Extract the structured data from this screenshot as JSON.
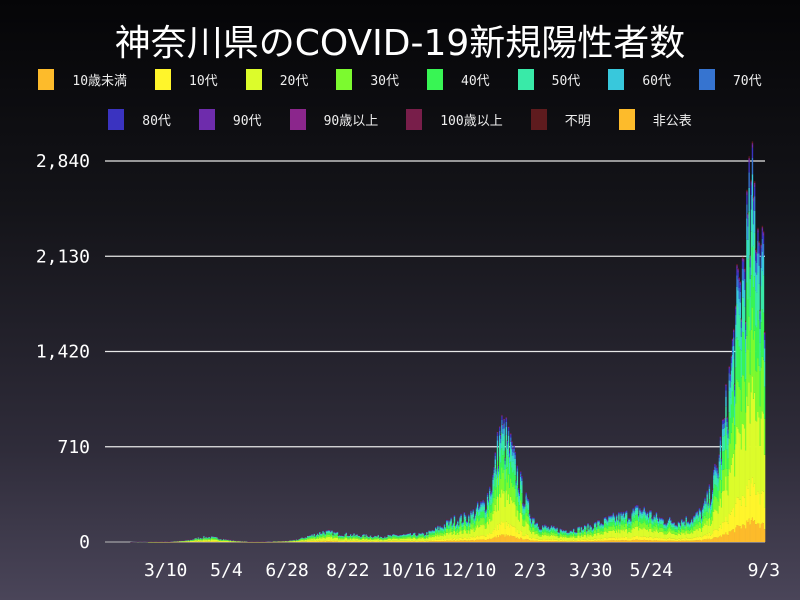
{
  "chart_data": {
    "type": "bar",
    "stacked": true,
    "title": "神奈川県のCOVID-19新規陽性者数",
    "xlabel": "",
    "ylabel": "",
    "ylim": [
      0,
      2840
    ],
    "yticks": [
      "0",
      "710",
      "1,420",
      "2,130",
      "2,840"
    ],
    "ytick_values": [
      0,
      710,
      1420,
      2130,
      2840
    ],
    "xticks": [
      "3/10",
      "5/4",
      "6/28",
      "8/22",
      "10/16",
      "12/10",
      "2/3",
      "3/30",
      "5/24",
      "9/3"
    ],
    "xtick_dates": [
      "2020-03-10",
      "2020-05-04",
      "2020-06-28",
      "2020-08-22",
      "2020-10-16",
      "2020-12-10",
      "2021-02-03",
      "2021-03-30",
      "2021-05-24",
      "2021-09-03"
    ],
    "x_range": [
      "2020-01-15",
      "2021-09-04"
    ],
    "grid": "horizontal",
    "legend_placement": "top",
    "series": [
      {
        "name": "10歳未満",
        "color": "#fdbb2b",
        "share": 0.06
      },
      {
        "name": "10代",
        "color": "#fff52b",
        "share": 0.1
      },
      {
        "name": "20代",
        "color": "#dcfc2b",
        "share": 0.25
      },
      {
        "name": "30代",
        "color": "#7cfa2f",
        "share": 0.17
      },
      {
        "name": "40代",
        "color": "#38f554",
        "share": 0.15
      },
      {
        "name": "50代",
        "color": "#39eaa8",
        "share": 0.12
      },
      {
        "name": "60代",
        "color": "#38c8dc",
        "share": 0.06
      },
      {
        "name": "70代",
        "color": "#3674d0",
        "share": 0.04
      },
      {
        "name": "80代",
        "color": "#3a33c0",
        "share": 0.025
      },
      {
        "name": "90代",
        "color": "#6e2cac",
        "share": 0.008
      },
      {
        "name": "90歳以上",
        "color": "#8b268c",
        "share": 0.003
      },
      {
        "name": "100歳以上",
        "color": "#781e4a",
        "share": 0.001
      },
      {
        "name": "不明",
        "color": "#5e1b1e",
        "share": 0.004
      },
      {
        "name": "非公表",
        "color": "#fdbb2b",
        "share": 0.0
      }
    ],
    "weekly_totals": {
      "dates": [
        "2020-01-16",
        "2020-01-23",
        "2020-01-30",
        "2020-02-06",
        "2020-02-13",
        "2020-02-20",
        "2020-02-27",
        "2020-03-05",
        "2020-03-12",
        "2020-03-19",
        "2020-03-26",
        "2020-04-02",
        "2020-04-09",
        "2020-04-16",
        "2020-04-23",
        "2020-04-30",
        "2020-05-07",
        "2020-05-14",
        "2020-05-21",
        "2020-05-28",
        "2020-06-04",
        "2020-06-11",
        "2020-06-18",
        "2020-06-25",
        "2020-07-02",
        "2020-07-09",
        "2020-07-16",
        "2020-07-23",
        "2020-07-30",
        "2020-08-06",
        "2020-08-13",
        "2020-08-20",
        "2020-08-27",
        "2020-09-03",
        "2020-09-10",
        "2020-09-17",
        "2020-09-24",
        "2020-10-01",
        "2020-10-08",
        "2020-10-15",
        "2020-10-22",
        "2020-10-29",
        "2020-11-05",
        "2020-11-12",
        "2020-11-19",
        "2020-11-26",
        "2020-12-03",
        "2020-12-10",
        "2020-12-17",
        "2020-12-24",
        "2020-12-31",
        "2021-01-07",
        "2021-01-14",
        "2021-01-21",
        "2021-01-28",
        "2021-02-04",
        "2021-02-11",
        "2021-02-18",
        "2021-02-25",
        "2021-03-04",
        "2021-03-11",
        "2021-03-18",
        "2021-03-25",
        "2021-04-01",
        "2021-04-08",
        "2021-04-15",
        "2021-04-22",
        "2021-04-29",
        "2021-05-06",
        "2021-05-13",
        "2021-05-20",
        "2021-05-27",
        "2021-06-03",
        "2021-06-10",
        "2021-06-17",
        "2021-06-24",
        "2021-07-01",
        "2021-07-08",
        "2021-07-15",
        "2021-07-22",
        "2021-07-29",
        "2021-08-05",
        "2021-08-12",
        "2021-08-19",
        "2021-08-26",
        "2021-09-02"
      ],
      "values": [
        0,
        0,
        0,
        0,
        1,
        1,
        2,
        3,
        4,
        6,
        10,
        20,
        35,
        40,
        35,
        25,
        15,
        8,
        5,
        3,
        3,
        4,
        6,
        8,
        12,
        25,
        45,
        60,
        80,
        75,
        65,
        60,
        55,
        50,
        50,
        45,
        45,
        50,
        55,
        55,
        60,
        60,
        80,
        110,
        140,
        170,
        180,
        200,
        250,
        300,
        480,
        850,
        750,
        550,
        350,
        200,
        130,
        110,
        100,
        90,
        95,
        100,
        110,
        130,
        150,
        170,
        190,
        200,
        220,
        250,
        230,
        190,
        170,
        160,
        160,
        170,
        190,
        230,
        350,
        550,
        900,
        1400,
        1900,
        2300,
        2600,
        2000
      ]
    }
  }
}
